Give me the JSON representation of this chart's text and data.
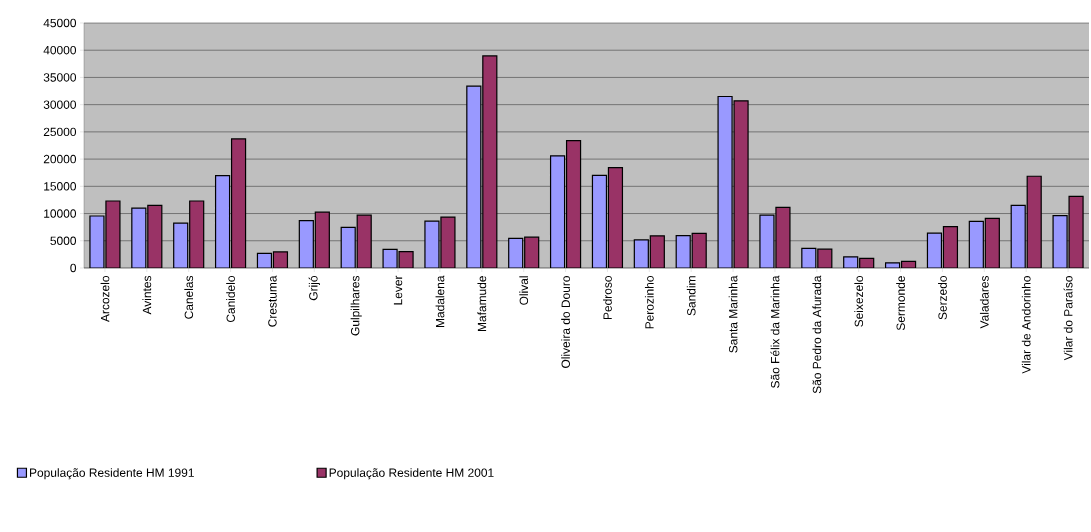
{
  "chart_data": {
    "type": "bar",
    "categories": [
      "Arcozelo",
      "Avintes",
      "Canelas",
      "Canidelo",
      "Crestuma",
      "Grijó",
      "Gulpilhares",
      "Lever",
      "Madalena",
      "Mafamude",
      "Olival",
      "Oliveira do Douro",
      "Pedroso",
      "Perozinho",
      "Sandim",
      "Santa Marinha",
      "São Félix da Marinha",
      "São Pedro da Afurada",
      "Seixezelo",
      "Sermonde",
      "Serzedo",
      "Valadares",
      "Vilar de Andorinho",
      "Vilar do Paraíso"
    ],
    "series": [
      {
        "name": "População Residente HM 1991",
        "color": "#9999ff",
        "values": [
          9550,
          11000,
          8250,
          16950,
          2700,
          8700,
          7450,
          3400,
          8600,
          33400,
          5450,
          20600,
          17000,
          5150,
          5950,
          31500,
          9700,
          3600,
          2050,
          950,
          6400,
          8550,
          11500,
          9600
        ]
      },
      {
        "name": "População Residente HM 2001",
        "color": "#993366",
        "values": [
          12300,
          11500,
          12300,
          23700,
          2950,
          10250,
          9700,
          3000,
          9350,
          38950,
          5650,
          23400,
          18450,
          5900,
          6350,
          30700,
          11150,
          3450,
          1750,
          1200,
          7600,
          9100,
          16850,
          13150
        ]
      }
    ],
    "ylim": [
      0,
      45000
    ],
    "yticks": [
      0,
      5000,
      10000,
      15000,
      20000,
      25000,
      30000,
      35000,
      40000,
      45000
    ],
    "grid": "y",
    "legend": "bottom"
  }
}
